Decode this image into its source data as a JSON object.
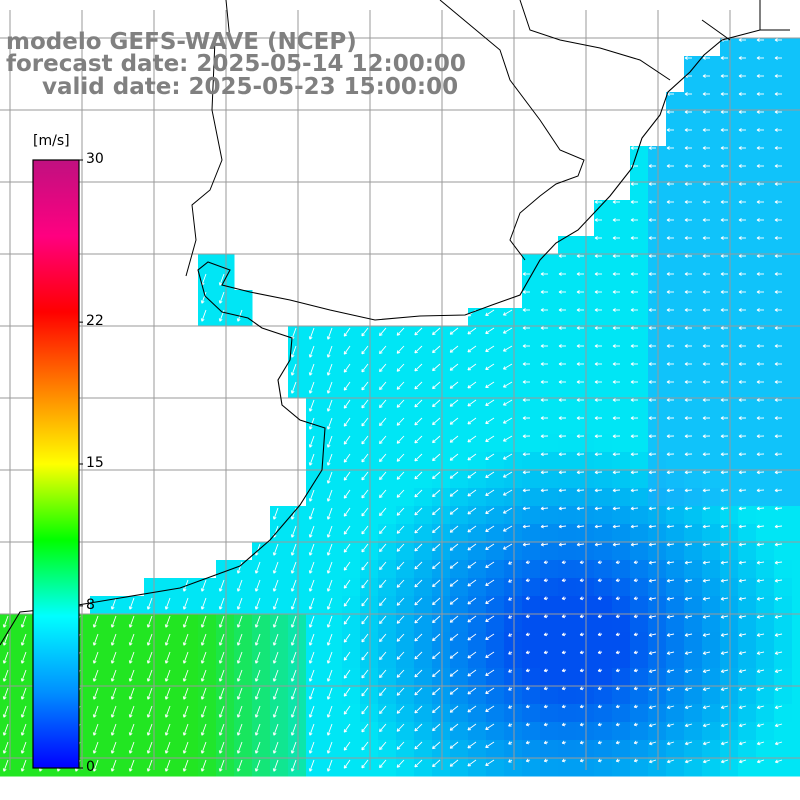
{
  "title": {
    "model": "modelo GEFS-WAVE (NCEP)",
    "forecast": "forecast date: 2025-05-14 12:00:00",
    "valid": "valid date: 2025-05-23 15:00:00"
  },
  "colorbar": {
    "unit": "[m/s]",
    "ticks": [
      "30",
      "22",
      "15",
      "8",
      "0"
    ],
    "tick_values": [
      30,
      22,
      15,
      8,
      0
    ],
    "range": [
      0,
      30
    ],
    "colors": [
      "#0000ff",
      "#0090ff",
      "#00ffff",
      "#00ff00",
      "#ffff00",
      "#ff8000",
      "#ff0000",
      "#ff0080",
      "#c01080"
    ]
  },
  "map": {
    "background": "#ffffff",
    "coastline_color": "#000000",
    "grid_color": "#9a9a9a",
    "arrow_color": "#ffffff",
    "field_colors": {
      "green": "#22e622",
      "cyan": "#00e6f5",
      "blue": "#0050f0"
    }
  }
}
